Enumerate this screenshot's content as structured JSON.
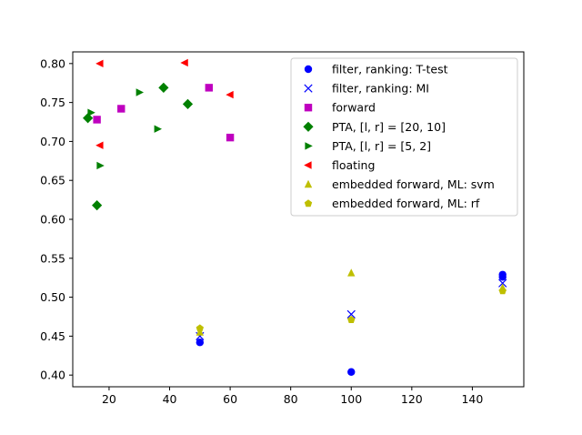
{
  "chart_data": {
    "type": "scatter",
    "title": "",
    "xlabel": "",
    "ylabel": "",
    "xlim": [
      8,
      157
    ],
    "ylim": [
      0.385,
      0.815
    ],
    "xticks": [
      20,
      40,
      60,
      80,
      100,
      120,
      140
    ],
    "yticks": [
      0.4,
      0.45,
      0.5,
      0.55,
      0.6,
      0.65,
      0.7,
      0.75,
      0.8
    ],
    "xtick_labels": [
      "20",
      "40",
      "60",
      "80",
      "100",
      "120",
      "140"
    ],
    "ytick_labels": [
      "0.40",
      "0.45",
      "0.50",
      "0.55",
      "0.60",
      "0.65",
      "0.70",
      "0.75",
      "0.80"
    ],
    "grid": false,
    "legend_position": "top-right",
    "series": [
      {
        "name": "filter, ranking: T-test",
        "marker": "circle",
        "color": "#0000ff",
        "points": [
          [
            50,
            0.442
          ],
          [
            100,
            0.404
          ],
          [
            150,
            0.529
          ],
          [
            150,
            0.526
          ]
        ]
      },
      {
        "name": "filter, ranking: MI",
        "marker": "x",
        "color": "#0000ff",
        "points": [
          [
            50,
            0.45
          ],
          [
            100,
            0.478
          ],
          [
            150,
            0.518
          ]
        ]
      },
      {
        "name": "forward",
        "marker": "square",
        "color": "#bf00bf",
        "points": [
          [
            16,
            0.728
          ],
          [
            24,
            0.742
          ],
          [
            53,
            0.769
          ],
          [
            60,
            0.705
          ]
        ]
      },
      {
        "name": "PTA, [l, r] = [20, 10]",
        "marker": "diamond",
        "color": "#008000",
        "points": [
          [
            13,
            0.73
          ],
          [
            16,
            0.618
          ],
          [
            38,
            0.769
          ],
          [
            46,
            0.748
          ]
        ]
      },
      {
        "name": "PTA, [l, r] = [5, 2]",
        "marker": "triangle-right",
        "color": "#008000",
        "points": [
          [
            14,
            0.737
          ],
          [
            17,
            0.669
          ],
          [
            30,
            0.763
          ],
          [
            36,
            0.716
          ]
        ]
      },
      {
        "name": "floating",
        "marker": "triangle-left",
        "color": "#ff0000",
        "points": [
          [
            17,
            0.8
          ],
          [
            17,
            0.695
          ],
          [
            45,
            0.801
          ],
          [
            60,
            0.76
          ]
        ]
      },
      {
        "name": "embedded forward, ML: svm",
        "marker": "triangle-up",
        "color": "#bfbf00",
        "points": [
          [
            50,
            0.455
          ],
          [
            100,
            0.531
          ],
          [
            150,
            0.512
          ]
        ]
      },
      {
        "name": "embedded forward, ML: rf",
        "marker": "pentagon",
        "color": "#bfbf00",
        "points": [
          [
            50,
            0.46
          ],
          [
            100,
            0.471
          ],
          [
            150,
            0.508
          ]
        ]
      }
    ]
  }
}
